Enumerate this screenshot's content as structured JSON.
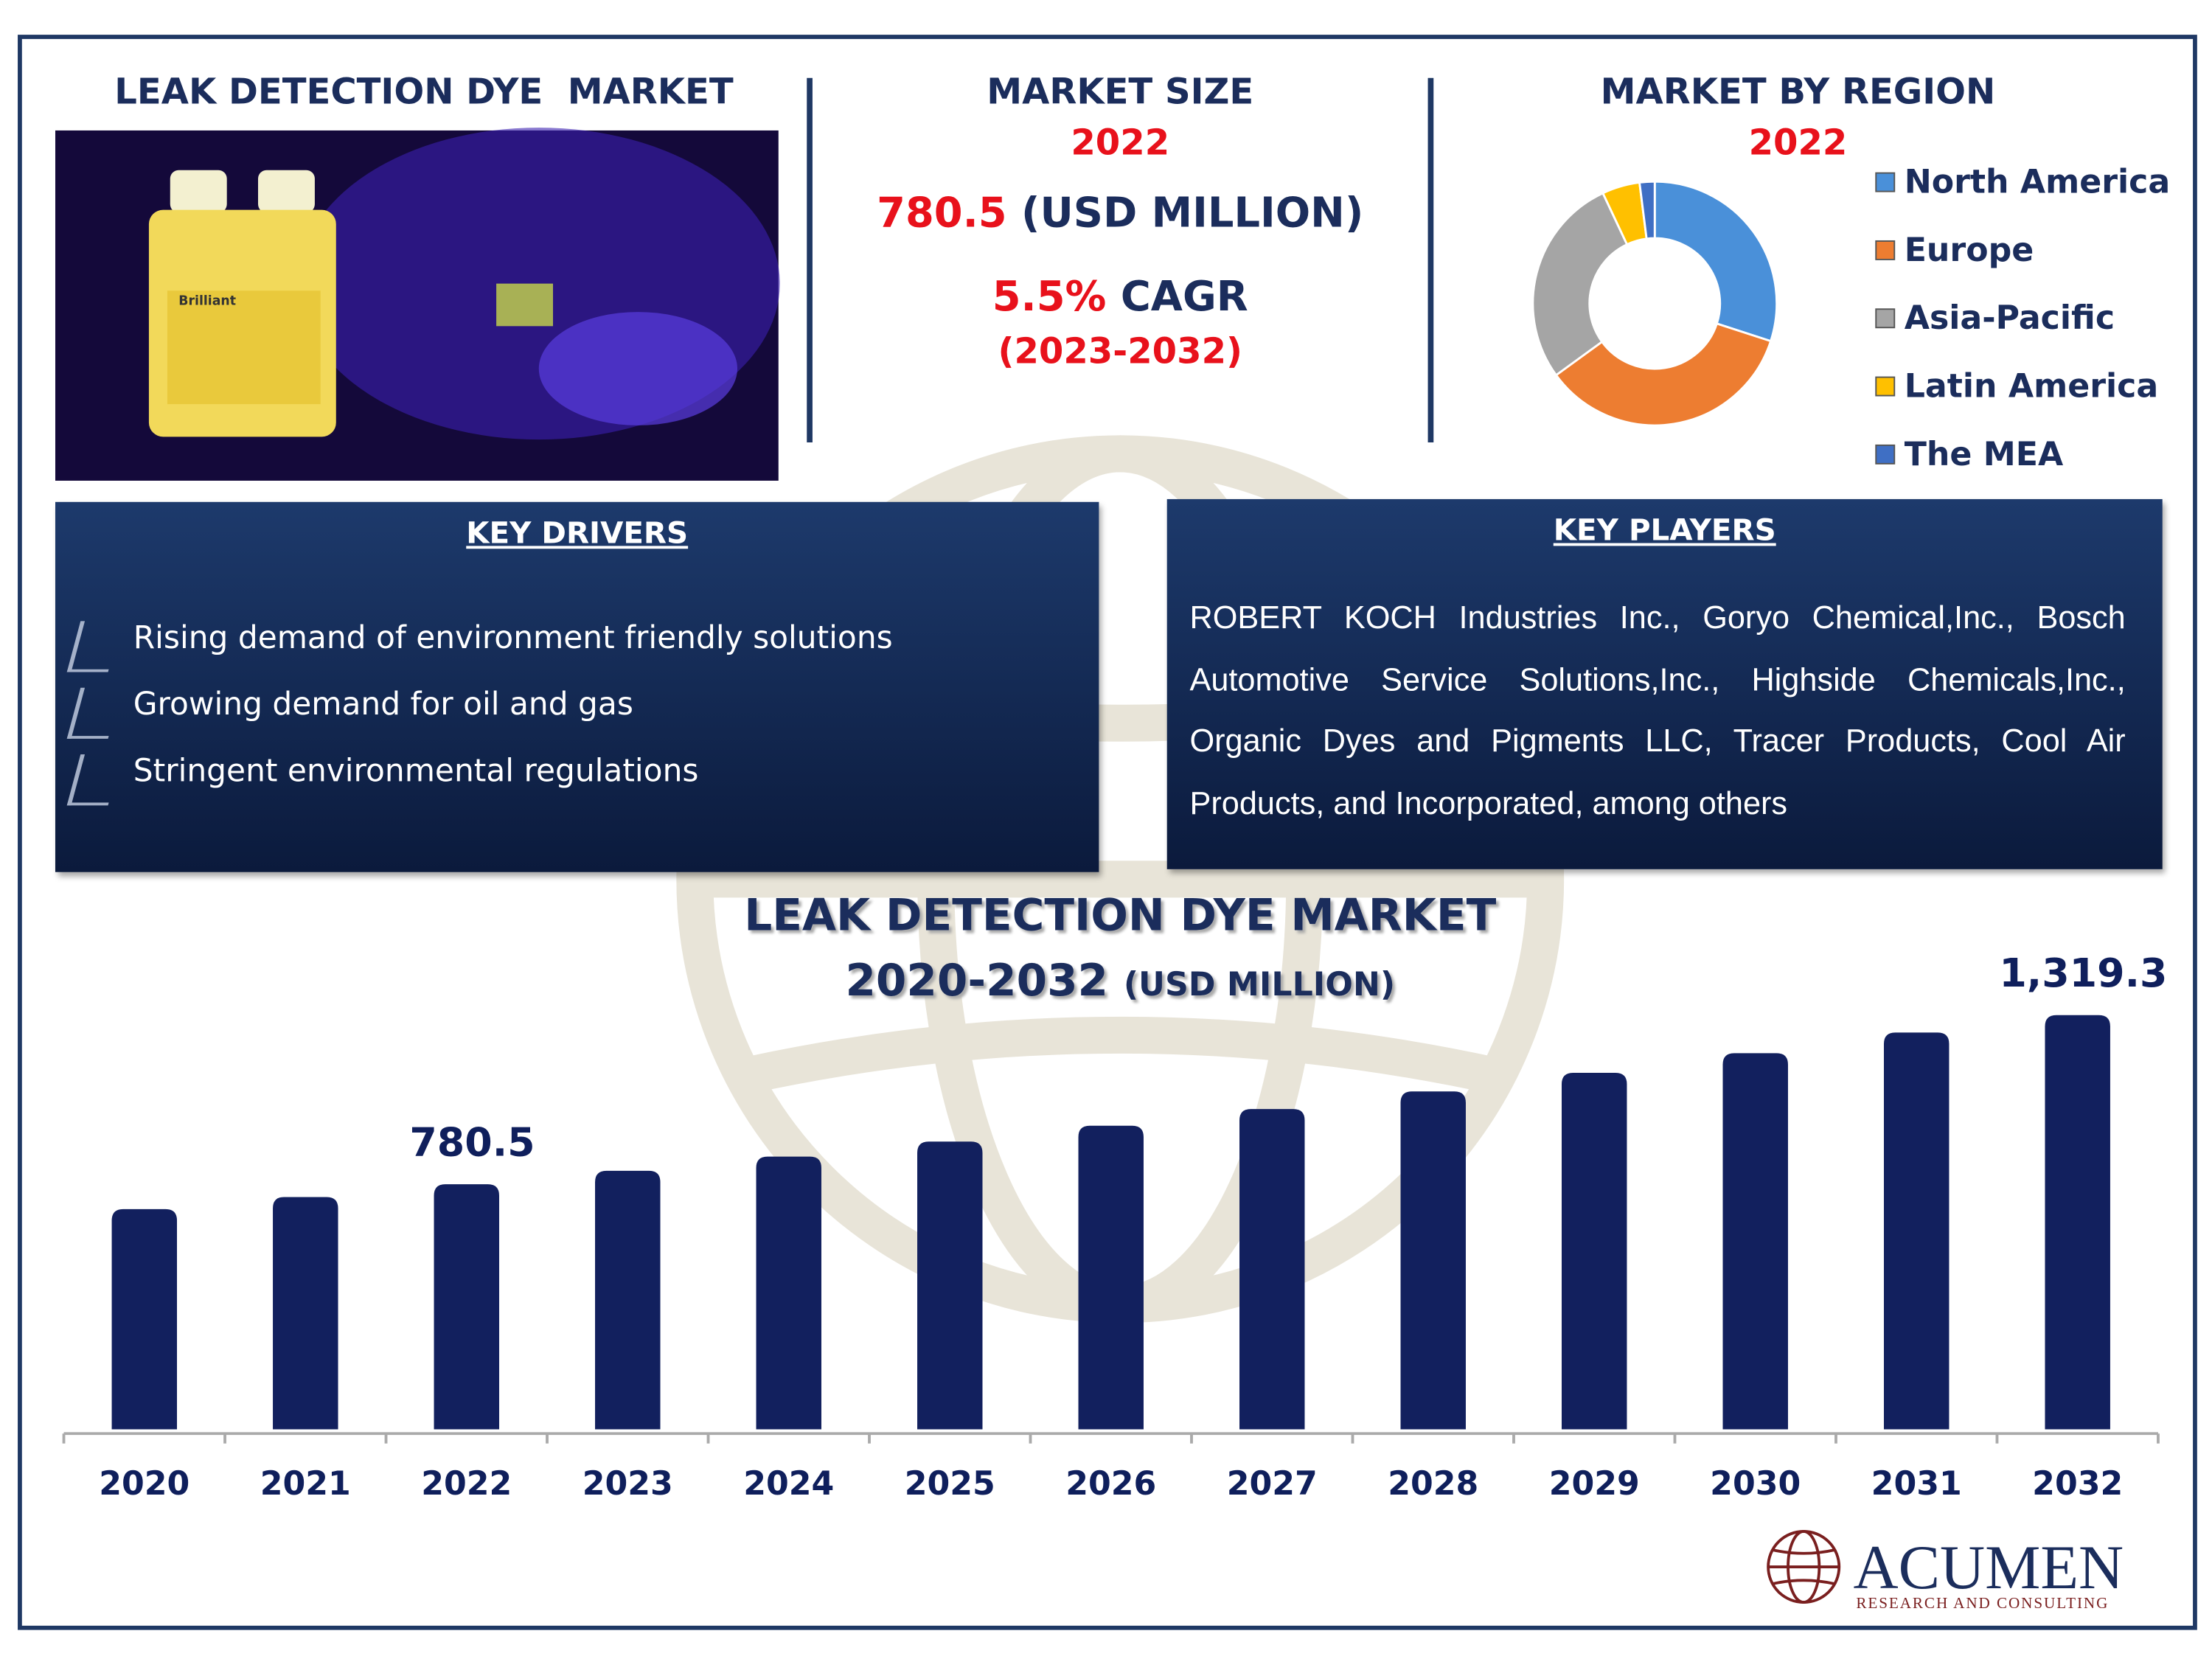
{
  "header": {
    "title": "LEAK DETECTION DYE  MARKET",
    "photo_label": "Brilliant"
  },
  "market_size": {
    "title": "MARKET SIZE",
    "year": "2022",
    "value": "780.5",
    "unit": "(USD MILLION)",
    "cagr": "5.5%",
    "cagr_label": "CAGR",
    "period": "(2023-2032)"
  },
  "key_drivers": {
    "title": "KEY DRIVERS",
    "items": [
      "Rising demand of environment friendly solutions",
      "Growing demand for oil and gas",
      "Stringent environmental regulations"
    ]
  },
  "key_players": {
    "title": "KEY PLAYERS",
    "text": "ROBERT KOCH Industries Inc., Goryo Chemical,Inc., Bosch Automotive Service Solutions,Inc., Highside Chemicals,Inc., Organic Dyes and Pigments LLC, Tracer Products, Cool Air Products, and Incorporated, among others"
  },
  "logo": {
    "name": "ACUMEN",
    "tagline": "RESEARCH AND CONSULTING"
  },
  "chart_data": [
    {
      "type": "pie",
      "donut": true,
      "title": "MARKET BY REGION",
      "subtitle": "2022",
      "categories": [
        "North America",
        "Europe",
        "Asia-Pacific",
        "Latin America",
        "The MEA"
      ],
      "values": [
        30,
        35,
        28,
        5,
        2
      ],
      "colors": [
        "#4a90d9",
        "#ed7d31",
        "#a5a5a5",
        "#ffc000",
        "#3f6fc4"
      ],
      "legend": "right"
    },
    {
      "type": "bar",
      "title": "LEAK DETECTION DYE MARKET",
      "subtitle": "2020-2032",
      "unit_label": "(USD MILLION)",
      "categories": [
        "2020",
        "2021",
        "2022",
        "2023",
        "2024",
        "2025",
        "2026",
        "2027",
        "2028",
        "2029",
        "2030",
        "2031",
        "2032"
      ],
      "values": [
        701.3,
        739.8,
        780.5,
        823.4,
        868.7,
        916.5,
        966.9,
        1020.0,
        1076.1,
        1135.3,
        1197.8,
        1263.7,
        1319.3
      ],
      "value_labels": [
        null,
        null,
        "780.5",
        null,
        null,
        null,
        null,
        null,
        null,
        null,
        null,
        null,
        "1,319.3"
      ],
      "color": "#12205e",
      "ylim": [
        0,
        1400
      ]
    }
  ]
}
